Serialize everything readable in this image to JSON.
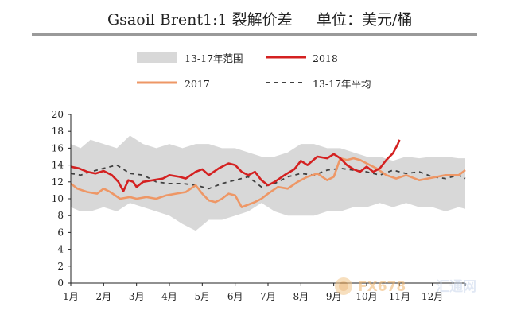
{
  "header": {
    "title": "Gsaoil Brent1:1 裂解价差",
    "unit": "单位：美元/桶"
  },
  "watermark": {
    "brand": "FX678",
    "brand_cn": "汇通网"
  },
  "chart_data": {
    "type": "line",
    "title": "Gsaoil Brent1:1 裂解价差",
    "unit": "美元/桶",
    "xlabel": "",
    "ylabel": "",
    "ylim": [
      0,
      20
    ],
    "yticks": [
      0,
      2,
      4,
      6,
      8,
      10,
      12,
      14,
      16,
      18,
      20
    ],
    "xlim": [
      1,
      13
    ],
    "xticks": [
      "1月",
      "2月",
      "3月",
      "4月",
      "5月",
      "6月",
      "7月",
      "8月",
      "9月",
      "10月",
      "11月",
      "12月"
    ],
    "grid": false,
    "legend_position": "top",
    "legend": [
      {
        "key": "range",
        "label": "13-17年范围",
        "kind": "area",
        "color": "#d8d8d8"
      },
      {
        "key": "y2018",
        "label": "2018",
        "kind": "line",
        "color": "#d42121"
      },
      {
        "key": "y2017",
        "label": "2017",
        "kind": "line",
        "color": "#ee9766"
      },
      {
        "key": "avg",
        "label": "13-17年平均",
        "kind": "dashed",
        "color": "#404040"
      }
    ],
    "band": {
      "name": "13-17年范围",
      "x": [
        1.0,
        1.3,
        1.6,
        2.0,
        2.4,
        2.8,
        3.2,
        3.6,
        4.0,
        4.4,
        4.8,
        5.2,
        5.6,
        6.0,
        6.4,
        6.8,
        7.2,
        7.6,
        8.0,
        8.4,
        8.8,
        9.2,
        9.6,
        10.0,
        10.4,
        10.8,
        11.2,
        11.6,
        12.0,
        12.4,
        12.8,
        13.0
      ],
      "low": [
        9.0,
        8.5,
        8.5,
        9.0,
        8.5,
        9.5,
        9.0,
        8.5,
        8.0,
        7.0,
        6.2,
        7.5,
        7.5,
        8.0,
        8.5,
        9.5,
        8.5,
        8.0,
        8.0,
        8.0,
        8.5,
        8.5,
        9.0,
        9.0,
        9.5,
        9.0,
        9.5,
        9.0,
        9.0,
        8.5,
        9.0,
        8.8
      ],
      "high": [
        16.5,
        16.0,
        17.0,
        16.5,
        16.0,
        17.5,
        16.5,
        16.0,
        16.5,
        16.0,
        16.5,
        16.5,
        16.0,
        16.0,
        15.5,
        15.0,
        15.0,
        15.5,
        16.5,
        16.5,
        16.0,
        16.0,
        15.5,
        15.0,
        15.0,
        14.5,
        15.0,
        14.8,
        15.0,
        15.0,
        14.8,
        14.8
      ]
    },
    "series": [
      {
        "name": "2018",
        "key": "y2018",
        "x": [
          1.0,
          1.25,
          1.5,
          1.75,
          2.0,
          2.25,
          2.45,
          2.6,
          2.75,
          2.9,
          3.0,
          3.2,
          3.5,
          3.8,
          4.0,
          4.3,
          4.5,
          4.8,
          5.0,
          5.2,
          5.5,
          5.8,
          6.0,
          6.2,
          6.4,
          6.6,
          6.8,
          7.0,
          7.2,
          7.5,
          7.8,
          8.0,
          8.2,
          8.5,
          8.8,
          9.0,
          9.2,
          9.4,
          9.6,
          9.8,
          10.0,
          10.2,
          10.4,
          10.6,
          10.8,
          10.95,
          11.0
        ],
        "y": [
          13.8,
          13.6,
          13.2,
          13.0,
          13.3,
          12.8,
          12.0,
          10.9,
          12.2,
          12.0,
          11.4,
          12.0,
          12.2,
          12.4,
          12.8,
          12.6,
          12.4,
          13.2,
          13.5,
          12.8,
          13.6,
          14.2,
          14.0,
          13.2,
          12.8,
          13.2,
          12.2,
          11.6,
          12.0,
          12.8,
          13.5,
          14.5,
          14.0,
          15.0,
          14.8,
          15.3,
          14.8,
          14.0,
          13.5,
          13.2,
          13.8,
          13.2,
          13.6,
          14.6,
          15.4,
          16.5,
          17.0
        ]
      },
      {
        "name": "2017",
        "key": "y2017",
        "x": [
          1.0,
          1.2,
          1.5,
          1.8,
          2.0,
          2.2,
          2.5,
          2.8,
          3.0,
          3.3,
          3.6,
          3.9,
          4.2,
          4.5,
          4.8,
          5.0,
          5.2,
          5.4,
          5.6,
          5.8,
          6.0,
          6.2,
          6.4,
          6.6,
          6.8,
          7.0,
          7.3,
          7.6,
          7.9,
          8.2,
          8.5,
          8.8,
          9.0,
          9.2,
          9.4,
          9.6,
          9.8,
          10.0,
          10.3,
          10.6,
          10.9,
          11.2,
          11.6,
          12.0,
          12.4,
          12.8,
          13.0
        ],
        "y": [
          11.8,
          11.2,
          10.8,
          10.6,
          11.2,
          10.8,
          10.0,
          10.2,
          10.0,
          10.2,
          10.0,
          10.4,
          10.6,
          10.8,
          11.6,
          10.6,
          9.8,
          9.6,
          10.0,
          10.6,
          10.4,
          9.0,
          9.3,
          9.6,
          10.0,
          10.6,
          11.4,
          11.2,
          12.0,
          12.6,
          13.0,
          12.2,
          12.6,
          14.8,
          14.6,
          14.8,
          14.6,
          14.2,
          13.6,
          12.8,
          12.4,
          12.8,
          12.2,
          12.5,
          12.8,
          12.8,
          13.4
        ]
      },
      {
        "name": "13-17年平均",
        "key": "avg",
        "x": [
          1.0,
          1.3,
          1.6,
          2.0,
          2.4,
          2.8,
          3.2,
          3.6,
          4.0,
          4.4,
          4.8,
          5.2,
          5.6,
          6.0,
          6.4,
          6.8,
          7.2,
          7.6,
          8.0,
          8.4,
          8.8,
          9.2,
          9.6,
          10.0,
          10.4,
          10.8,
          11.2,
          11.6,
          12.0,
          12.4,
          12.8,
          13.0
        ],
        "y": [
          13.0,
          12.8,
          13.2,
          13.6,
          14.0,
          13.0,
          12.8,
          12.0,
          11.8,
          11.8,
          11.6,
          11.2,
          11.8,
          12.2,
          12.6,
          11.4,
          11.8,
          12.6,
          13.0,
          12.8,
          13.4,
          13.6,
          13.4,
          13.2,
          12.8,
          13.4,
          13.0,
          13.2,
          12.6,
          12.4,
          12.8,
          12.4
        ]
      }
    ]
  }
}
